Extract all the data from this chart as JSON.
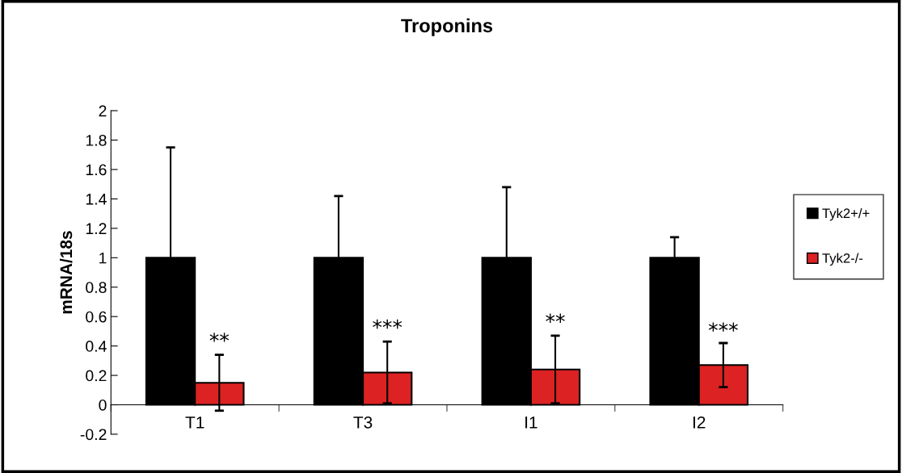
{
  "chart_data": {
    "type": "bar",
    "title": "Troponins",
    "ylabel": "mRNA/18s",
    "categories": [
      "T1",
      "T3",
      "I1",
      "I2"
    ],
    "series": [
      {
        "name": "Tyk2+/+",
        "color": "#000000",
        "values": [
          1,
          1,
          1,
          1
        ],
        "errors": [
          0.75,
          0.42,
          0.48,
          0.14
        ]
      },
      {
        "name": "Tyk2-/-",
        "color": "#dc2222",
        "values": [
          0.15,
          0.22,
          0.24,
          0.27
        ],
        "errors": [
          0.19,
          0.21,
          0.23,
          0.15
        ]
      }
    ],
    "ylim": [
      -0.2,
      2
    ],
    "yticks": [
      -0.2,
      0,
      0.2,
      0.4,
      0.6,
      0.8,
      1,
      1.2,
      1.4,
      1.6,
      1.8,
      2
    ],
    "annotations": [
      {
        "text": "**",
        "x": "T1",
        "y": 0.36
      },
      {
        "text": "***",
        "x": "T3",
        "y": 0.45
      },
      {
        "text": "**",
        "x": "I1",
        "y": 0.49
      },
      {
        "text": "***",
        "x": "I2",
        "y": 0.43
      }
    ],
    "grid": false,
    "legend": "right"
  }
}
